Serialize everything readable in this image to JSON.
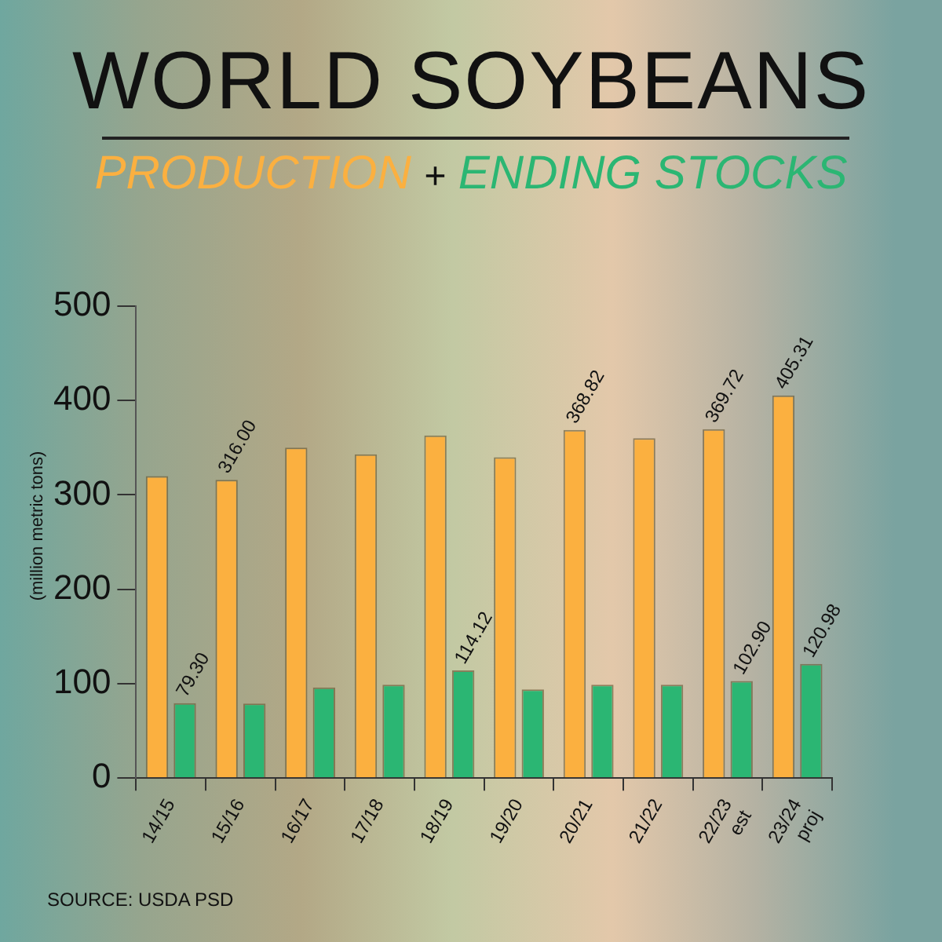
{
  "chart_data": {
    "type": "bar",
    "title": "WORLD SOYBEANS",
    "ylabel": "(million metric tons)",
    "categories": [
      "14/15",
      "15/16",
      "16/17",
      "17/18",
      "18/19",
      "19/20",
      "20/21",
      "21/22",
      "22/23 est",
      "23/24 proj"
    ],
    "series": [
      {
        "name": "PRODUCTION",
        "color": "#fbb040",
        "values": [
          320,
          316.0,
          350,
          343,
          363,
          340,
          368.82,
          360,
          369.72,
          405.31
        ],
        "value_labels": [
          null,
          "316.00",
          null,
          null,
          null,
          null,
          "368.82",
          null,
          "369.72",
          "405.31"
        ]
      },
      {
        "name": "ENDING STOCKS",
        "color": "#2bb673",
        "values": [
          79.3,
          79,
          96,
          99,
          114.12,
          94,
          99,
          99,
          102.9,
          120.98
        ],
        "value_labels": [
          "79.30",
          null,
          null,
          null,
          "114.12",
          null,
          null,
          null,
          "102.90",
          "120.98"
        ]
      }
    ],
    "ylim": [
      0,
      500
    ],
    "yticks": [
      0,
      100,
      200,
      300,
      400,
      500
    ],
    "grid": false,
    "legend": "top",
    "annotations": [
      "+",
      "SOURCE: USDA PSD"
    ]
  }
}
